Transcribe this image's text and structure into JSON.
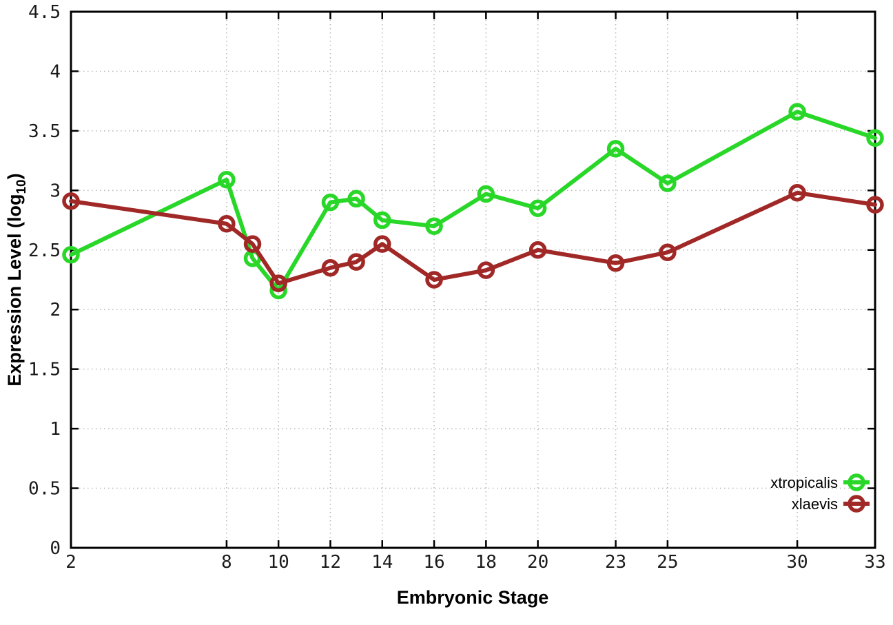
{
  "figure": {
    "background": "#ffffff"
  },
  "chart_data": {
    "type": "line",
    "title": "",
    "xlabel": "Embryonic Stage",
    "ylabel": "Expression Level (log10)",
    "ylabel_parts": {
      "main": "Expression Level (log",
      "sub": "10",
      "close": ")"
    },
    "xlim": [
      2,
      33
    ],
    "ylim": [
      0,
      4.5
    ],
    "grid": true,
    "legend_position": "inside-bottom-right",
    "marker": "open-circle",
    "colors": {
      "xtropicalis": "#28d728",
      "xlaevis": "#a02826",
      "grid": "#b8b8b8",
      "border": "#000000",
      "text": "#1a1a1a"
    },
    "x": [
      2,
      8,
      9,
      10,
      12,
      13,
      14,
      16,
      18,
      20,
      23,
      25,
      30,
      33
    ],
    "xtick_values": [
      2,
      8,
      10,
      12,
      14,
      16,
      18,
      20,
      23,
      25,
      30,
      33
    ],
    "xtick_labels": [
      "2",
      "8",
      "10",
      "12",
      "14",
      "16",
      "18",
      "20",
      "23",
      "25",
      "30",
      "33"
    ],
    "ytick_values": [
      0,
      0.5,
      1,
      1.5,
      2,
      2.5,
      3,
      3.5,
      4,
      4.5
    ],
    "ytick_labels": [
      "0",
      "0.5",
      "1",
      "1.5",
      "2",
      "2.5",
      "3",
      "3.5",
      "4",
      "4.5"
    ],
    "series": [
      {
        "name": "xtropicalis",
        "color": "#28d728",
        "values": [
          2.46,
          3.09,
          2.43,
          2.16,
          2.9,
          2.93,
          2.75,
          2.7,
          2.97,
          2.85,
          3.35,
          3.06,
          3.66,
          3.44
        ]
      },
      {
        "name": "xlaevis",
        "color": "#a02826",
        "values": [
          2.91,
          2.72,
          2.55,
          2.22,
          2.35,
          2.4,
          2.55,
          2.25,
          2.33,
          2.5,
          2.39,
          2.48,
          2.98,
          2.88
        ]
      }
    ]
  }
}
